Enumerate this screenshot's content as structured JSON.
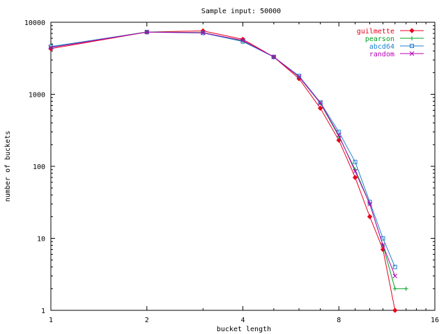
{
  "chart_data": {
    "type": "line",
    "title": "Sample input: 50000",
    "xlabel": "bucket length",
    "ylabel": "number of buckets",
    "xscale": "log2",
    "yscale": "log10",
    "xlim": [
      1,
      16
    ],
    "ylim": [
      1,
      10000
    ],
    "x_ticks": [
      1,
      2,
      4,
      8,
      16
    ],
    "x_tick_labels": [
      "1",
      "2",
      "4",
      "8",
      "16"
    ],
    "y_ticks": [
      1,
      10,
      100,
      1000,
      10000
    ],
    "y_tick_labels": [
      "1",
      "10",
      "100",
      "1000",
      "10000"
    ],
    "grid": false,
    "legend_position": "top-right",
    "x": [
      1,
      2,
      3,
      4,
      5,
      6,
      7,
      8,
      9,
      10,
      11,
      12,
      13
    ],
    "series": [
      {
        "name": "guilmette",
        "color": "#e8001c",
        "marker": "diamond",
        "values": [
          4300,
          7300,
          7600,
          5800,
          3300,
          1650,
          640,
          230,
          70,
          20,
          7,
          1,
          null
        ]
      },
      {
        "name": "pearson",
        "color": "#00a020",
        "marker": "plus",
        "values": [
          4550,
          7350,
          7200,
          5500,
          3300,
          1750,
          750,
          260,
          90,
          30,
          8,
          2,
          2
        ]
      },
      {
        "name": "abcd64",
        "color": "#1f7fcf",
        "marker": "square",
        "values": [
          4600,
          7300,
          7100,
          5400,
          3300,
          1800,
          770,
          300,
          115,
          32,
          10,
          4,
          null
        ]
      },
      {
        "name": "random",
        "color": "#b400b4",
        "marker": "cross",
        "values": [
          4450,
          7300,
          7150,
          5600,
          3300,
          1750,
          760,
          270,
          85,
          30,
          8,
          3,
          null
        ]
      }
    ]
  }
}
